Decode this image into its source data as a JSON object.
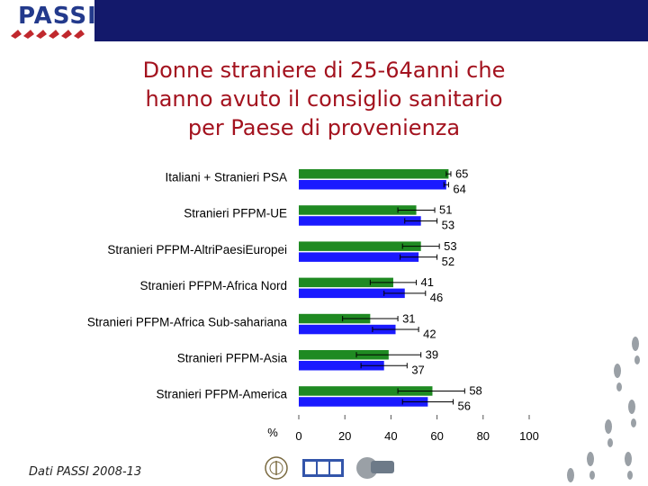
{
  "header": {
    "logo_text": "PASSI",
    "band_color": "#13196b"
  },
  "title_lines": [
    "Donne straniere di 25-64anni che",
    "hanno avuto il consiglio sanitario",
    "per Paese di provenienza"
  ],
  "footer": "Dati PASSI 2008-13",
  "sponsor_logos": [
    "ISS seal",
    "ccm",
    "Cnesps"
  ],
  "colors": {
    "green": "#1f8a22",
    "blue": "#1a1aff",
    "title": "#a3121e"
  },
  "chart_data": {
    "type": "bar",
    "orientation": "horizontal",
    "title": "",
    "xlabel": "%",
    "xlim": [
      0,
      100
    ],
    "xticks": [
      0,
      20,
      40,
      60,
      80,
      100
    ],
    "categories": [
      "Italiani + Stranieri PSA",
      "Stranieri PFPM-UE",
      "Stranieri PFPM-AltriPaesiEuropei",
      "Stranieri PFPM-Africa Nord",
      "Stranieri PFPM-Africa Sub-sahariana",
      "Stranieri PFPM-Asia",
      "Stranieri PFPM-America"
    ],
    "series": [
      {
        "name": "green",
        "color": "#1f8a22",
        "values": [
          65,
          51,
          53,
          41,
          31,
          39,
          58
        ],
        "ci_low": [
          64,
          43,
          45,
          31,
          19,
          25,
          43
        ],
        "ci_high": [
          66,
          59,
          61,
          51,
          43,
          53,
          72
        ]
      },
      {
        "name": "blue",
        "color": "#1a1aff",
        "values": [
          64,
          53,
          52,
          46,
          42,
          37,
          56
        ],
        "ci_low": [
          63,
          46,
          44,
          37,
          32,
          27,
          45
        ],
        "ci_high": [
          65,
          60,
          60,
          55,
          52,
          47,
          67
        ]
      }
    ]
  }
}
